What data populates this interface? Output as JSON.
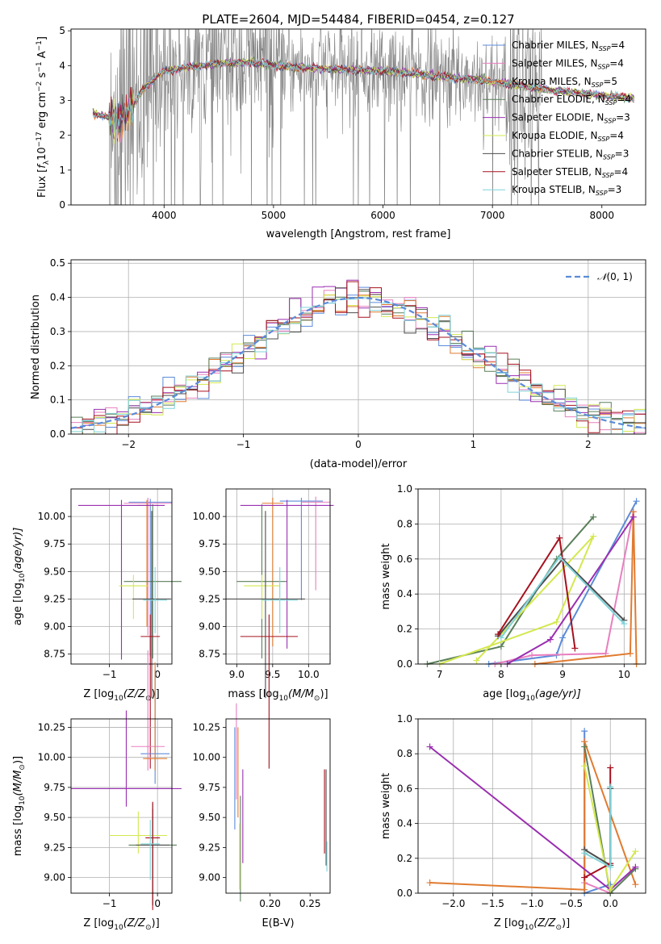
{
  "figure": {
    "title": "PLATE=2604, MJD=54484, FIBERID=0454, z=0.127",
    "colors": {
      "chabrier_miles": "#5b8bd9",
      "salpeter_miles": "#e87fbf",
      "kroupa_miles": "#e07b30",
      "chabrier_elodie": "#5a7f5a",
      "salpeter_elodie": "#9a2fb0",
      "kroupa_elodie": "#d4e84f",
      "chabrier_stelib": "#4d4d4d",
      "salpeter_stelib": "#a6101e",
      "kroupa_stelib": "#7fd3d9",
      "data": "#808080",
      "gaussian": "#5b8bd9",
      "grid": "#b0b0b0"
    }
  },
  "chart_data": [
    {
      "id": "spectrum",
      "type": "line",
      "xlabel": "wavelength [Angstrom, rest frame]",
      "ylabel_parts": [
        "Flux [",
        "f",
        "λ",
        "10",
        "−17",
        " erg cm",
        "−2",
        " s",
        "−1",
        " A",
        "−1",
        "]"
      ],
      "xlim": [
        3150,
        8400
      ],
      "ylim": [
        0,
        5.05
      ],
      "xticks": [
        4000,
        5000,
        6000,
        7000,
        8000
      ],
      "yticks": [
        0,
        1,
        2,
        3,
        4,
        5
      ],
      "grid": false,
      "legend_position": "upper right",
      "legend": [
        {
          "imf": "Chabrier",
          "lib": "MILES",
          "n": "4",
          "color": "#5b8bd9"
        },
        {
          "imf": "Salpeter",
          "lib": "MILES",
          "n": "4",
          "color": "#e87fbf"
        },
        {
          "imf": "Kroupa",
          "lib": "MILES",
          "n": "5",
          "color": "#e07b30"
        },
        {
          "imf": "Chabrier",
          "lib": "ELODIE",
          "n": "4",
          "color": "#5a7f5a"
        },
        {
          "imf": "Salpeter",
          "lib": "ELODIE",
          "n": "3",
          "color": "#9a2fb0"
        },
        {
          "imf": "Kroupa",
          "lib": "ELODIE",
          "n": "4",
          "color": "#d4e84f"
        },
        {
          "imf": "Chabrier",
          "lib": "STELIB",
          "n": "3",
          "color": "#4d4d4d"
        },
        {
          "imf": "Salpeter",
          "lib": "STELIB",
          "n": "4",
          "color": "#a6101e"
        },
        {
          "imf": "Kroupa",
          "lib": "STELIB",
          "n": "3",
          "color": "#7fd3d9"
        }
      ],
      "continuum": [
        [
          3350,
          2.65
        ],
        [
          3500,
          2.5
        ],
        [
          3600,
          2.4
        ],
        [
          3700,
          2.75
        ],
        [
          3800,
          3.3
        ],
        [
          3900,
          3.6
        ],
        [
          4000,
          3.85
        ],
        [
          4200,
          3.95
        ],
        [
          4500,
          4.05
        ],
        [
          4800,
          4.1
        ],
        [
          5000,
          4.0
        ],
        [
          5500,
          3.9
        ],
        [
          6000,
          3.85
        ],
        [
          6500,
          3.7
        ],
        [
          7000,
          3.55
        ],
        [
          7500,
          3.3
        ],
        [
          8000,
          3.15
        ],
        [
          8300,
          3.05
        ]
      ],
      "noise_range": [
        3500,
        7450
      ]
    },
    {
      "id": "residuals",
      "type": "histogram",
      "xlabel": "(data-model)/error",
      "ylabel": "Normed distribution",
      "xlim": [
        -2.5,
        2.5
      ],
      "ylim": [
        0,
        0.51
      ],
      "xticks": [
        -2,
        -1,
        0,
        1,
        2
      ],
      "yticks": [
        0,
        0.1,
        0.2,
        0.3,
        0.4,
        0.5
      ],
      "grid": true,
      "legend": [
        {
          "label_prefix": "𝒩",
          "label_args": "(0, 1)",
          "style": "dashed",
          "color": "#5b8bd9"
        }
      ],
      "bin_width": 0.1
    },
    {
      "id": "age_vs_z",
      "type": "errorbar",
      "xlabel_parts": [
        "Z [log",
        "10",
        "(Z/Z",
        "⊙",
        ")]"
      ],
      "ylabel_parts": [
        "age  [log",
        "10",
        "(age/yr)]"
      ],
      "xlim": [
        -1.8,
        0.3
      ],
      "ylim": [
        8.66,
        10.25
      ],
      "xticks": [
        -1,
        0
      ],
      "yticks": [
        8.75,
        9.0,
        9.25,
        9.5,
        9.75,
        10.0
      ],
      "grid": true,
      "points": [
        {
          "x": -0.15,
          "y": 10.13,
          "xerr": 0.45,
          "yerr": [
            0.03,
            1.4
          ],
          "color": "#5b8bd9"
        },
        {
          "x": -0.2,
          "y": 10.12,
          "xerr": 0.5,
          "yerr": [
            0.05,
            1.2
          ],
          "color": "#e87fbf"
        },
        {
          "x": -0.22,
          "y": 10.1,
          "xerr": 0.2,
          "yerr": [
            0.05,
            1.1
          ],
          "color": "#e07b30"
        },
        {
          "x": -0.1,
          "y": 9.41,
          "xerr": 0.6,
          "yerr": [
            0.7,
            0.7
          ],
          "color": "#5a7f5a"
        },
        {
          "x": -0.75,
          "y": 10.1,
          "xerr": 0.9,
          "yerr": [
            0.05,
            1.4
          ],
          "color": "#9a2fb0"
        },
        {
          "x": -0.5,
          "y": 9.37,
          "xerr": 0.3,
          "yerr": [
            0.1,
            0.3
          ],
          "color": "#d4e84f"
        },
        {
          "x": -0.12,
          "y": 9.25,
          "xerr": 0.4,
          "yerr": [
            0.8,
            0.9
          ],
          "color": "#4d4d4d"
        },
        {
          "x": -0.15,
          "y": 8.91,
          "xerr": 0.2,
          "yerr": [
            0.2,
            1.2
          ],
          "color": "#a6101e"
        },
        {
          "x": -0.05,
          "y": 9.24,
          "xerr": 0.25,
          "yerr": [
            0.3,
            0.3
          ],
          "color": "#7fd3d9"
        }
      ]
    },
    {
      "id": "age_vs_mass",
      "type": "errorbar",
      "xlabel_parts": [
        "mass [log",
        "10",
        "(M/M",
        "⊙",
        ")]"
      ],
      "xlim": [
        8.85,
        10.3
      ],
      "ylim": [
        8.66,
        10.25
      ],
      "xticks": [
        9.0,
        9.5,
        10.0
      ],
      "yticks": [
        8.75,
        9.0,
        9.25,
        9.5,
        9.75,
        10.0
      ],
      "grid": true,
      "points": [
        {
          "x": 9.9,
          "y": 10.14,
          "xerr": 0.3,
          "yerr": [
            0.03,
            0.9
          ],
          "color": "#5b8bd9"
        },
        {
          "x": 10.1,
          "y": 10.13,
          "xerr": 0.2,
          "yerr": [
            0.05,
            0.8
          ],
          "color": "#e87fbf"
        },
        {
          "x": 9.5,
          "y": 10.12,
          "xerr": 0.15,
          "yerr": [
            0.05,
            1.3
          ],
          "color": "#e07b30"
        },
        {
          "x": 9.35,
          "y": 9.41,
          "xerr": 0.35,
          "yerr": [
            0.7,
            0.7
          ],
          "color": "#5a7f5a"
        },
        {
          "x": 9.7,
          "y": 10.1,
          "xerr": 0.65,
          "yerr": [
            0.05,
            1.3
          ],
          "color": "#9a2fb0"
        },
        {
          "x": 9.35,
          "y": 9.37,
          "xerr": 0.25,
          "yerr": [
            0.1,
            0.3
          ],
          "color": "#d4e84f"
        },
        {
          "x": 9.4,
          "y": 9.25,
          "xerr": 0.55,
          "yerr": [
            0.8,
            0.9
          ],
          "color": "#4d4d4d"
        },
        {
          "x": 9.45,
          "y": 8.91,
          "xerr": 0.4,
          "yerr": [
            0.2,
            1.2
          ],
          "color": "#a6101e"
        },
        {
          "x": 9.6,
          "y": 9.24,
          "xerr": 0.25,
          "yerr": [
            0.3,
            0.3
          ],
          "color": "#7fd3d9"
        }
      ]
    },
    {
      "id": "massweight_vs_age",
      "type": "line",
      "xlabel_parts": [
        "age  [log",
        "10",
        "(age/yr)]"
      ],
      "ylabel": "mass weight",
      "xlim": [
        6.65,
        10.35
      ],
      "ylim": [
        0,
        1.0
      ],
      "xticks": [
        7,
        8,
        9,
        10
      ],
      "yticks": [
        0.0,
        0.2,
        0.4,
        0.6,
        0.8,
        1.0
      ],
      "grid": true,
      "series": [
        {
          "color": "#5b8bd9",
          "x": [
            7.8,
            8.9,
            9.0,
            10.2
          ],
          "y": [
            0.0,
            0.05,
            0.15,
            0.93
          ]
        },
        {
          "color": "#e87fbf",
          "x": [
            7.9,
            8.5,
            9.7,
            10.15
          ],
          "y": [
            0.0,
            0.05,
            0.06,
            0.87
          ]
        },
        {
          "color": "#e07b30",
          "x": [
            8.55,
            10.1,
            10.15,
            10.2
          ],
          "y": [
            0.0,
            0.06,
            0.87,
            0.0
          ]
        },
        {
          "color": "#5a7f5a",
          "x": [
            6.8,
            8.0,
            8.9,
            9.5
          ],
          "y": [
            0.0,
            0.1,
            0.6,
            0.84
          ]
        },
        {
          "color": "#9a2fb0",
          "x": [
            8.1,
            8.8,
            10.15
          ],
          "y": [
            0.0,
            0.14,
            0.84
          ]
        },
        {
          "color": "#d4e84f",
          "x": [
            7.0,
            8.9,
            9.5,
            7.6
          ],
          "y": [
            0.0,
            0.24,
            0.73,
            0.02
          ]
        },
        {
          "color": "#4d4d4d",
          "x": [
            7.95,
            9.0,
            10.0
          ],
          "y": [
            0.16,
            0.6,
            0.25
          ]
        },
        {
          "color": "#a6101e",
          "x": [
            7.95,
            8.95,
            9.2
          ],
          "y": [
            0.17,
            0.72,
            0.09
          ]
        },
        {
          "color": "#7fd3d9",
          "x": [
            8.0,
            8.95,
            10.0
          ],
          "y": [
            0.15,
            0.61,
            0.23
          ]
        }
      ]
    },
    {
      "id": "mass_vs_z",
      "type": "errorbar",
      "xlabel_parts": [
        "Z [log",
        "10",
        "(Z/Z",
        "⊙",
        ")]"
      ],
      "ylabel_parts": [
        "mass [log",
        "10",
        "(M/M",
        "⊙",
        ")]"
      ],
      "xlim": [
        -1.8,
        0.3
      ],
      "ylim": [
        8.87,
        10.32
      ],
      "xticks": [
        -1,
        0
      ],
      "yticks": [
        9.0,
        9.25,
        9.5,
        9.75,
        10.0,
        10.25
      ],
      "grid": true,
      "points": [
        {
          "x": -0.05,
          "y": 10.03,
          "xerr": 0.3,
          "yerr": [
            0.7,
            0.25
          ],
          "color": "#5b8bd9"
        },
        {
          "x": -0.2,
          "y": 10.09,
          "xerr": 0.35,
          "yerr": [
            0.8,
            0.2
          ],
          "color": "#e87fbf"
        },
        {
          "x": -0.05,
          "y": 9.99,
          "xerr": 0.25,
          "yerr": [
            0.8,
            0.1
          ],
          "color": "#e07b30"
        },
        {
          "x": -0.1,
          "y": 9.27,
          "xerr": 0.5,
          "yerr": [
            0.35,
            0.5
          ],
          "color": "#5a7f5a"
        },
        {
          "x": -0.65,
          "y": 9.74,
          "xerr": 1.15,
          "yerr": [
            0.65,
            0.15
          ],
          "color": "#9a2fb0"
        },
        {
          "x": -0.4,
          "y": 9.35,
          "xerr": 0.6,
          "yerr": [
            0.2,
            0.15
          ],
          "color": "#d4e84f"
        },
        {
          "x": -0.1,
          "y": 9.27,
          "xerr": 0.35,
          "yerr": [
            0.3,
            0.5
          ],
          "color": "#4d4d4d"
        },
        {
          "x": -0.1,
          "y": 9.33,
          "xerr": 0.15,
          "yerr": [
            0.3,
            0.6
          ],
          "color": "#a6101e"
        },
        {
          "x": -0.15,
          "y": 9.28,
          "xerr": 0.2,
          "yerr": [
            0.2,
            0.3
          ],
          "color": "#7fd3d9"
        }
      ]
    },
    {
      "id": "mass_vs_ebv",
      "type": "errorbar",
      "xlabel": "E(B-V)",
      "xlim": [
        0.145,
        0.275
      ],
      "ylim": [
        8.87,
        10.32
      ],
      "xticks": [
        0.2,
        0.25
      ],
      "yticks": [
        9.0,
        9.25,
        9.5,
        9.75,
        10.0,
        10.25
      ],
      "grid": false,
      "points": [
        {
          "x": 0.156,
          "y": 9.8,
          "yerr": [
            0.45,
            0.4
          ],
          "color": "#5b8bd9"
        },
        {
          "x": 0.158,
          "y": 9.95,
          "yerr": [
            0.5,
            0.3
          ],
          "color": "#e87fbf"
        },
        {
          "x": 0.16,
          "y": 9.8,
          "yerr": [
            0.45,
            0.3
          ],
          "color": "#e07b30"
        },
        {
          "x": 0.163,
          "y": 9.3,
          "yerr": [
            0.38,
            0.5
          ],
          "color": "#5a7f5a"
        },
        {
          "x": 0.166,
          "y": 9.5,
          "yerr": [
            0.4,
            0.38
          ],
          "color": "#9a2fb0"
        },
        {
          "x": 0.162,
          "y": 9.2,
          "yerr": [
            0.25,
            0.3
          ],
          "color": "#d4e84f"
        },
        {
          "x": 0.27,
          "y": 9.5,
          "yerr": [
            0.4,
            0.4
          ],
          "color": "#4d4d4d"
        },
        {
          "x": 0.268,
          "y": 9.6,
          "yerr": [
            0.3,
            0.4
          ],
          "color": "#a6101e"
        },
        {
          "x": 0.271,
          "y": 9.2,
          "yerr": [
            0.1,
            0.15
          ],
          "color": "#7fd3d9"
        }
      ]
    },
    {
      "id": "massweight_vs_z",
      "type": "line",
      "xlabel_parts": [
        "Z [log",
        "10",
        "(Z/Z",
        "⊙",
        ")]"
      ],
      "ylabel": "mass weight",
      "xlim": [
        -2.45,
        0.45
      ],
      "ylim": [
        0,
        1.0
      ],
      "xticks": [
        -2.0,
        -1.5,
        -1.0,
        -0.5,
        0.0
      ],
      "yticks": [
        0.0,
        0.2,
        0.4,
        0.6,
        0.8,
        1.0
      ],
      "grid": true,
      "series": [
        {
          "color": "#5b8bd9",
          "x": [
            -0.33,
            -0.33,
            0.0,
            0.0
          ],
          "y": [
            0.93,
            0.0,
            0.05,
            0.0
          ]
        },
        {
          "color": "#e87fbf",
          "x": [
            -0.33,
            -0.33,
            0.0
          ],
          "y": [
            0.87,
            0.06,
            0.0
          ]
        },
        {
          "color": "#e07b30",
          "x": [
            -2.3,
            -0.33,
            -0.33,
            0.32
          ],
          "y": [
            0.06,
            0.02,
            0.87,
            0.05
          ]
        },
        {
          "color": "#5a7f5a",
          "x": [
            -0.33,
            0.0,
            0.32
          ],
          "y": [
            0.84,
            0.0,
            0.14
          ]
        },
        {
          "color": "#9a2fb0",
          "x": [
            -2.3,
            0.0,
            0.32
          ],
          "y": [
            0.84,
            0.02,
            0.15
          ]
        },
        {
          "color": "#d4e84f",
          "x": [
            -0.33,
            0.0,
            0.32
          ],
          "y": [
            0.73,
            0.02,
            0.24
          ]
        },
        {
          "color": "#4d4d4d",
          "x": [
            -0.33,
            0.0,
            0.0
          ],
          "y": [
            0.25,
            0.16,
            0.6
          ]
        },
        {
          "color": "#a6101e",
          "x": [
            -0.33,
            0.0,
            0.0
          ],
          "y": [
            0.09,
            0.17,
            0.72
          ]
        },
        {
          "color": "#7fd3d9",
          "x": [
            -0.33,
            0.0,
            0.0
          ],
          "y": [
            0.23,
            0.15,
            0.61
          ]
        }
      ]
    }
  ]
}
